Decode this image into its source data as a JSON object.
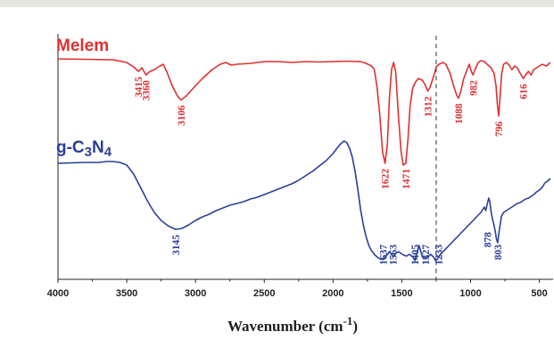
{
  "chart_data": {
    "type": "line",
    "title": "",
    "xlabel": "Wavenumber (cm",
    "xlabel_sup": "-1",
    "xlabel_close": ")",
    "ylabel": "",
    "xlim": [
      4000,
      400
    ],
    "x_reversed": true,
    "grid": false,
    "xticks": [
      4000,
      3500,
      3000,
      2500,
      2000,
      1500,
      1000,
      500
    ],
    "xtick_labels": [
      "4000",
      "3500",
      "3000",
      "2500",
      "2000",
      "1500",
      "1000",
      "500"
    ],
    "reference_line_x": 1250,
    "series": [
      {
        "name": "Melem",
        "color": "#e03030",
        "points": [
          [
            4000,
            66
          ],
          [
            3800,
            66.5
          ],
          [
            3600,
            67
          ],
          [
            3500,
            70
          ],
          [
            3450,
            75
          ],
          [
            3415,
            80
          ],
          [
            3390,
            76
          ],
          [
            3360,
            84
          ],
          [
            3330,
            80
          ],
          [
            3300,
            78
          ],
          [
            3260,
            74
          ],
          [
            3235,
            72
          ],
          [
            3210,
            80
          ],
          [
            3170,
            96
          ],
          [
            3130,
            108
          ],
          [
            3106,
            112
          ],
          [
            3070,
            108
          ],
          [
            3000,
            96
          ],
          [
            2950,
            88
          ],
          [
            2880,
            78
          ],
          [
            2820,
            72
          ],
          [
            2780,
            70
          ],
          [
            2740,
            73
          ],
          [
            2700,
            72
          ],
          [
            2600,
            71
          ],
          [
            2500,
            69
          ],
          [
            2400,
            69
          ],
          [
            2300,
            70
          ],
          [
            2200,
            69
          ],
          [
            2100,
            69.5
          ],
          [
            2000,
            69
          ],
          [
            1900,
            68.5
          ],
          [
            1800,
            69
          ],
          [
            1760,
            71
          ],
          [
            1720,
            74
          ],
          [
            1700,
            78
          ],
          [
            1680,
            98
          ],
          [
            1660,
            130
          ],
          [
            1640,
            170
          ],
          [
            1622,
            183
          ],
          [
            1605,
            162
          ],
          [
            1590,
            110
          ],
          [
            1575,
            78
          ],
          [
            1560,
            70
          ],
          [
            1545,
            80
          ],
          [
            1525,
            130
          ],
          [
            1505,
            170
          ],
          [
            1490,
            185
          ],
          [
            1471,
            183
          ],
          [
            1455,
            155
          ],
          [
            1440,
            118
          ],
          [
            1420,
            98
          ],
          [
            1400,
            92
          ],
          [
            1380,
            88
          ],
          [
            1350,
            90
          ],
          [
            1330,
            95
          ],
          [
            1312,
            102
          ],
          [
            1295,
            98
          ],
          [
            1270,
            86
          ],
          [
            1250,
            75
          ],
          [
            1230,
            72
          ],
          [
            1200,
            70
          ],
          [
            1180,
            72
          ],
          [
            1150,
            82
          ],
          [
            1120,
            98
          ],
          [
            1100,
            107
          ],
          [
            1088,
            110
          ],
          [
            1070,
            102
          ],
          [
            1050,
            88
          ],
          [
            1030,
            80
          ],
          [
            1010,
            72
          ],
          [
            995,
            80
          ],
          [
            982,
            84
          ],
          [
            968,
            78
          ],
          [
            945,
            70
          ],
          [
            925,
            68
          ],
          [
            900,
            69
          ],
          [
            880,
            72
          ],
          [
            850,
            76
          ],
          [
            830,
            82
          ],
          [
            815,
            96
          ],
          [
            805,
            118
          ],
          [
            796,
            130
          ],
          [
            787,
            112
          ],
          [
            775,
            84
          ],
          [
            760,
            72
          ],
          [
            740,
            70
          ],
          [
            720,
            73
          ],
          [
            700,
            78
          ],
          [
            680,
            74
          ],
          [
            660,
            76
          ],
          [
            640,
            82
          ],
          [
            616,
            88
          ],
          [
            600,
            84
          ],
          [
            580,
            80
          ],
          [
            560,
            84
          ],
          [
            540,
            78
          ],
          [
            510,
            75
          ],
          [
            480,
            72
          ],
          [
            450,
            74
          ],
          [
            420,
            70
          ]
        ],
        "peak_labels": [
          "3415",
          "3360",
          "3106",
          "1622",
          "1471",
          "1312",
          "1088",
          "982",
          "796",
          "616"
        ],
        "peak_x": [
          3415,
          3360,
          3106,
          1622,
          1471,
          1312,
          1088,
          982,
          796,
          616
        ]
      },
      {
        "name": "g-C",
        "name_sub1": "3",
        "name_mid": "N",
        "name_sub2": "4",
        "color": "#2b3f9a",
        "points": [
          [
            4000,
            183
          ],
          [
            3900,
            182.5
          ],
          [
            3800,
            182
          ],
          [
            3700,
            182
          ],
          [
            3650,
            181
          ],
          [
            3600,
            181
          ],
          [
            3550,
            182
          ],
          [
            3500,
            185
          ],
          [
            3450,
            195
          ],
          [
            3400,
            210
          ],
          [
            3350,
            225
          ],
          [
            3300,
            238
          ],
          [
            3250,
            247
          ],
          [
            3200,
            253
          ],
          [
            3145,
            257
          ],
          [
            3100,
            256
          ],
          [
            3050,
            252
          ],
          [
            3000,
            247
          ],
          [
            2950,
            243
          ],
          [
            2900,
            240
          ],
          [
            2850,
            236
          ],
          [
            2800,
            233
          ],
          [
            2750,
            230
          ],
          [
            2700,
            228
          ],
          [
            2650,
            226
          ],
          [
            2600,
            223
          ],
          [
            2550,
            221
          ],
          [
            2500,
            218
          ],
          [
            2450,
            215
          ],
          [
            2400,
            212
          ],
          [
            2350,
            209
          ],
          [
            2300,
            206
          ],
          [
            2250,
            202
          ],
          [
            2200,
            197
          ],
          [
            2150,
            192
          ],
          [
            2100,
            186
          ],
          [
            2050,
            180
          ],
          [
            2000,
            172
          ],
          [
            1950,
            162
          ],
          [
            1920,
            158
          ],
          [
            1900,
            160
          ],
          [
            1880,
            166
          ],
          [
            1860,
            176
          ],
          [
            1840,
            192
          ],
          [
            1820,
            212
          ],
          [
            1800,
            235
          ],
          [
            1780,
            252
          ],
          [
            1760,
            265
          ],
          [
            1740,
            275
          ],
          [
            1720,
            281
          ],
          [
            1700,
            285
          ],
          [
            1680,
            288
          ],
          [
            1660,
            290
          ],
          [
            1637,
            291
          ],
          [
            1620,
            288
          ],
          [
            1600,
            284
          ],
          [
            1590,
            282
          ],
          [
            1575,
            285
          ],
          [
            1563,
            288
          ],
          [
            1545,
            284
          ],
          [
            1525,
            282
          ],
          [
            1505,
            284
          ],
          [
            1485,
            286
          ],
          [
            1465,
            287
          ],
          [
            1445,
            285
          ],
          [
            1420,
            288
          ],
          [
            1405,
            292
          ],
          [
            1395,
            286
          ],
          [
            1385,
            282
          ],
          [
            1375,
            275
          ],
          [
            1365,
            280
          ],
          [
            1350,
            288
          ],
          [
            1327,
            290
          ],
          [
            1310,
            288
          ],
          [
            1290,
            285
          ],
          [
            1270,
            288
          ],
          [
            1255,
            292
          ],
          [
            1240,
            290
          ],
          [
            1233,
            288
          ],
          [
            1215,
            284
          ],
          [
            1200,
            282
          ],
          [
            1175,
            278
          ],
          [
            1150,
            274
          ],
          [
            1125,
            270
          ],
          [
            1100,
            266
          ],
          [
            1075,
            262
          ],
          [
            1050,
            258
          ],
          [
            1025,
            254
          ],
          [
            1000,
            250
          ],
          [
            975,
            246
          ],
          [
            950,
            242
          ],
          [
            925,
            238
          ],
          [
            900,
            232
          ],
          [
            890,
            236
          ],
          [
            878,
            228
          ],
          [
            868,
            222
          ],
          [
            860,
            226
          ],
          [
            850,
            238
          ],
          [
            840,
            246
          ],
          [
            830,
            252
          ],
          [
            820,
            260
          ],
          [
            812,
            268
          ],
          [
            803,
            272
          ],
          [
            795,
            262
          ],
          [
            785,
            252
          ],
          [
            775,
            242
          ],
          [
            760,
            238
          ],
          [
            740,
            236
          ],
          [
            720,
            234
          ],
          [
            700,
            232
          ],
          [
            680,
            230
          ],
          [
            660,
            228
          ],
          [
            640,
            227
          ],
          [
            620,
            225
          ],
          [
            600,
            223
          ],
          [
            580,
            222
          ],
          [
            560,
            220
          ],
          [
            540,
            218
          ],
          [
            520,
            215
          ],
          [
            500,
            213
          ],
          [
            480,
            210
          ],
          [
            460,
            205
          ],
          [
            440,
            203
          ],
          [
            420,
            200
          ]
        ],
        "peak_labels": [
          "3145",
          "1637",
          "1563",
          "1405",
          "1327",
          "1233",
          "878",
          "803"
        ],
        "peak_x": [
          3145,
          1637,
          1563,
          1405,
          1327,
          1233,
          878,
          803
        ]
      }
    ]
  }
}
